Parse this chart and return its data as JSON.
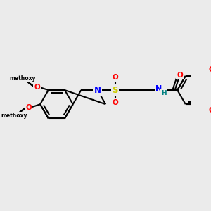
{
  "background_color": "#ebebeb",
  "line_color": "#000000",
  "atom_colors": {
    "N": "#0000ff",
    "O": "#ff0000",
    "S": "#cccc00",
    "H": "#008080",
    "C": "#000000"
  },
  "line_width": 1.5,
  "font_size": 8.5,
  "figsize": [
    3.0,
    3.0
  ],
  "dpi": 100
}
